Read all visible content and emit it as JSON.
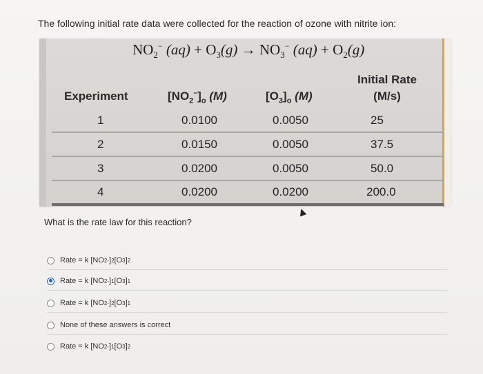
{
  "intro": "The following initial rate data were collected for the reaction of ozone with nitrite ion:",
  "equation": {
    "r1": "NO",
    "r1_sub": "2",
    "r1_sup": "−",
    "r1_state": "(aq)",
    "plus1": "+",
    "r2": "O",
    "r2_sub": "3",
    "r2_state": "(g)",
    "arrow": "→",
    "p1": "NO",
    "p1_sub": "3",
    "p1_sup": "−",
    "p1_state": "(aq)",
    "plus2": "+",
    "p2": "O",
    "p2_sub": "2",
    "p2_state": "(g)"
  },
  "table": {
    "headers": {
      "experiment": "Experiment",
      "no2": "[NO",
      "no2_sub": "2",
      "no2_sup": "−",
      "no2_rest": "]",
      "no2_o": "o",
      "no2_unit": "(M)",
      "o3": "[O",
      "o3_sub": "3",
      "o3_rest": "]",
      "o3_o": "o",
      "o3_unit": "(M)",
      "rate_line1": "Initial Rate",
      "rate_line2": "(M/s)"
    },
    "rows": [
      {
        "exp": "1",
        "no2": "0.0100",
        "o3": "0.0050",
        "rate": "25"
      },
      {
        "exp": "2",
        "no2": "0.0150",
        "o3": "0.0050",
        "rate": "37.5"
      },
      {
        "exp": "3",
        "no2": "0.0200",
        "o3": "0.0050",
        "rate": "50.0"
      },
      {
        "exp": "4",
        "no2": "0.0200",
        "o3": "0.0200",
        "rate": "200.0"
      }
    ]
  },
  "question": "What is the rate law for this reaction?",
  "choices": [
    {
      "prefix": "Rate = k [NO",
      "a_sub": "2",
      "a_sup": "-",
      "a_exp": "2",
      "mid": " [O",
      "b_sub": "3",
      "b_exp": "2",
      "checked": false
    },
    {
      "prefix": "Rate = k [NO",
      "a_sub": "2",
      "a_sup": "-",
      "a_exp": "1",
      "mid": " [O",
      "b_sub": "3",
      "b_exp": "1",
      "checked": true
    },
    {
      "prefix": "Rate = k [NO",
      "a_sub": "2",
      "a_sup": "-",
      "a_exp": "2",
      "mid": " [O",
      "b_sub": "3",
      "b_exp": "1",
      "checked": false
    },
    {
      "text": "None of these answers is correct",
      "checked": false
    },
    {
      "prefix": "Rate = k [NO",
      "a_sub": "2",
      "a_sup": "-",
      "a_exp": "1",
      "mid": " [O",
      "b_sub": "3",
      "b_exp": "2",
      "checked": false
    }
  ],
  "colors": {
    "selected_radio": "#1f63c4",
    "accent_bar": "#d6a24a"
  }
}
